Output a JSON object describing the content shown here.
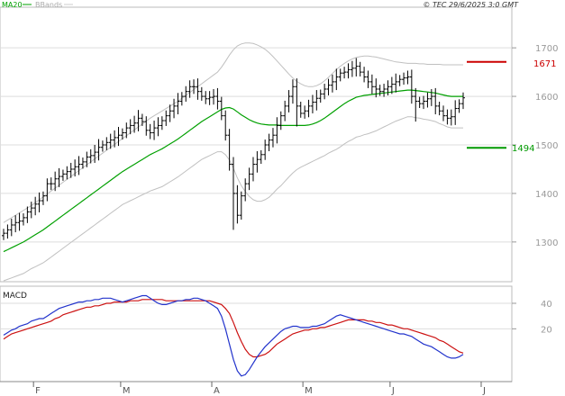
{
  "header": {
    "legend_ma": "MA20",
    "legend_bb": "BBands",
    "copyright": "© TEC 29/6/2025 3:0 GMT"
  },
  "colors": {
    "ma": "#00a000",
    "bands": "#c0c0c0",
    "bars": "#000000",
    "resistance": "#cc0000",
    "support": "#009900",
    "macd": "#2233cc",
    "signal": "#cc1111",
    "grid": "#dddddd"
  },
  "chart_data": [
    {
      "type": "line",
      "title": "",
      "description_series": [
        "price bars (OHLC)",
        "MA20",
        "BBands upper",
        "BBands lower"
      ],
      "x_labels": [
        "F",
        "M",
        "A",
        "M",
        "J",
        "J"
      ],
      "y_ticks": [
        1300,
        1400,
        1500,
        1600,
        1700
      ],
      "ylim": [
        1220,
        1780
      ],
      "grid": true,
      "levels": [
        {
          "name": "resistance",
          "value": 1671,
          "label": "1671"
        },
        {
          "name": "support",
          "value": 1494,
          "label": "1494"
        }
      ],
      "close": [
        1318,
        1325,
        1335,
        1340,
        1343,
        1350,
        1362,
        1370,
        1378,
        1385,
        1395,
        1420,
        1420,
        1430,
        1435,
        1440,
        1445,
        1450,
        1455,
        1460,
        1465,
        1475,
        1478,
        1485,
        1495,
        1500,
        1505,
        1510,
        1515,
        1520,
        1525,
        1535,
        1540,
        1545,
        1555,
        1548,
        1530,
        1525,
        1535,
        1540,
        1550,
        1560,
        1570,
        1580,
        1590,
        1600,
        1610,
        1620,
        1620,
        1610,
        1600,
        1595,
        1598,
        1600,
        1590,
        1560,
        1520,
        1460,
        1400,
        1355,
        1395,
        1420,
        1440,
        1460,
        1470,
        1480,
        1500,
        1510,
        1520,
        1540,
        1560,
        1580,
        1600,
        1620,
        1580,
        1565,
        1570,
        1580,
        1588,
        1596,
        1605,
        1615,
        1623,
        1630,
        1640,
        1648,
        1650,
        1655,
        1658,
        1662,
        1650,
        1640,
        1630,
        1620,
        1615,
        1610,
        1615,
        1620,
        1625,
        1630,
        1635,
        1638,
        1640,
        1600,
        1590,
        1585,
        1590,
        1595,
        1600,
        1580,
        1570,
        1560,
        1555,
        1558,
        1575,
        1585,
        1597
      ],
      "ma20": [
        1280,
        1284,
        1288,
        1292,
        1296,
        1300,
        1305,
        1310,
        1315,
        1320,
        1325,
        1331,
        1337,
        1343,
        1349,
        1355,
        1361,
        1367,
        1373,
        1379,
        1385,
        1391,
        1397,
        1403,
        1409,
        1415,
        1421,
        1427,
        1433,
        1439,
        1445,
        1450,
        1455,
        1460,
        1465,
        1470,
        1475,
        1480,
        1484,
        1488,
        1492,
        1497,
        1502,
        1507,
        1512,
        1518,
        1524,
        1530,
        1536,
        1542,
        1548,
        1553,
        1558,
        1563,
        1568,
        1573,
        1576,
        1577,
        1574,
        1568,
        1562,
        1557,
        1552,
        1548,
        1545,
        1543,
        1542,
        1541,
        1541,
        1541,
        1540,
        1540,
        1540,
        1540,
        1540,
        1540,
        1540,
        1541,
        1543,
        1546,
        1550,
        1555,
        1561,
        1567,
        1573,
        1579,
        1585,
        1590,
        1594,
        1598,
        1600,
        1602,
        1603,
        1604,
        1605,
        1606,
        1607,
        1608,
        1609,
        1610,
        1611,
        1612,
        1613,
        1613,
        1612,
        1611,
        1610,
        1609,
        1608,
        1607,
        1605,
        1603,
        1601,
        1600,
        1600,
        1600,
        1600
      ],
      "upper": [
        1340,
        1345,
        1350,
        1355,
        1360,
        1365,
        1370,
        1375,
        1381,
        1387,
        1393,
        1399,
        1405,
        1411,
        1417,
        1423,
        1429,
        1435,
        1441,
        1447,
        1453,
        1459,
        1465,
        1471,
        1477,
        1483,
        1489,
        1495,
        1501,
        1507,
        1513,
        1519,
        1525,
        1531,
        1537,
        1543,
        1549,
        1555,
        1560,
        1565,
        1570,
        1575,
        1580,
        1585,
        1590,
        1596,
        1602,
        1608,
        1614,
        1620,
        1626,
        1632,
        1638,
        1644,
        1650,
        1660,
        1672,
        1685,
        1696,
        1704,
        1708,
        1710,
        1710,
        1709,
        1706,
        1702,
        1697,
        1690,
        1682,
        1673,
        1664,
        1655,
        1646,
        1638,
        1631,
        1626,
        1622,
        1620,
        1620,
        1622,
        1626,
        1632,
        1639,
        1647,
        1655,
        1662,
        1668,
        1673,
        1677,
        1680,
        1682,
        1683,
        1683,
        1682,
        1681,
        1679,
        1677,
        1675,
        1673,
        1671,
        1670,
        1669,
        1668,
        1668,
        1668,
        1667,
        1667,
        1666,
        1666,
        1666,
        1666,
        1665,
        1665,
        1665,
        1665,
        1665,
        1665
      ],
      "lower": [
        1220,
        1223,
        1226,
        1229,
        1232,
        1235,
        1240,
        1245,
        1249,
        1253,
        1257,
        1263,
        1269,
        1275,
        1281,
        1287,
        1293,
        1299,
        1305,
        1311,
        1317,
        1323,
        1329,
        1335,
        1341,
        1347,
        1353,
        1359,
        1365,
        1371,
        1377,
        1381,
        1385,
        1389,
        1393,
        1397,
        1401,
        1405,
        1408,
        1411,
        1414,
        1419,
        1424,
        1429,
        1434,
        1440,
        1446,
        1452,
        1458,
        1464,
        1470,
        1474,
        1478,
        1482,
        1486,
        1486,
        1480,
        1469,
        1452,
        1432,
        1416,
        1404,
        1394,
        1387,
        1384,
        1384,
        1387,
        1392,
        1400,
        1409,
        1416,
        1425,
        1434,
        1442,
        1449,
        1454,
        1458,
        1462,
        1466,
        1470,
        1474,
        1478,
        1483,
        1487,
        1491,
        1496,
        1502,
        1507,
        1511,
        1516,
        1518,
        1521,
        1523,
        1526,
        1529,
        1533,
        1537,
        1541,
        1545,
        1549,
        1552,
        1555,
        1558,
        1558,
        1556,
        1555,
        1553,
        1552,
        1550,
        1548,
        1544,
        1541,
        1537,
        1535,
        1535,
        1535,
        1535
      ]
    },
    {
      "type": "line",
      "title": "MACD",
      "y_ticks": [
        20,
        40
      ],
      "ylim": [
        -20,
        52
      ],
      "grid": true,
      "macd": [
        15,
        17,
        19,
        20,
        22,
        23,
        24,
        26,
        27,
        28,
        28,
        30,
        32,
        34,
        36,
        37,
        38,
        39,
        40,
        41,
        41,
        42,
        42,
        43,
        43,
        44,
        44,
        44,
        43,
        42,
        41,
        42,
        43,
        44,
        45,
        46,
        46,
        44,
        42,
        40,
        39,
        39,
        40,
        41,
        42,
        42,
        43,
        43,
        44,
        44,
        43,
        42,
        40,
        38,
        36,
        30,
        20,
        8,
        -4,
        -13,
        -17,
        -16,
        -12,
        -7,
        -2,
        2,
        6,
        9,
        12,
        15,
        18,
        20,
        21,
        22,
        22,
        21,
        21,
        21,
        22,
        22,
        23,
        24,
        26,
        28,
        30,
        31,
        30,
        29,
        28,
        27,
        26,
        25,
        24,
        23,
        22,
        21,
        20,
        19,
        18,
        17,
        16,
        16,
        15,
        14,
        12,
        10,
        8,
        7,
        6,
        4,
        2,
        0,
        -2,
        -3,
        -3,
        -2,
        0
      ],
      "signal": [
        12,
        14,
        16,
        17,
        18,
        19,
        20,
        21,
        22,
        23,
        24,
        25,
        26,
        28,
        29,
        31,
        32,
        33,
        34,
        35,
        36,
        37,
        37,
        38,
        38,
        39,
        40,
        40,
        41,
        41,
        41,
        41,
        42,
        42,
        42,
        43,
        43,
        43,
        43,
        43,
        43,
        42,
        42,
        42,
        42,
        42,
        42,
        42,
        42,
        42,
        42,
        42,
        42,
        41,
        40,
        39,
        36,
        32,
        25,
        17,
        10,
        4,
        0,
        -2,
        -2,
        -1,
        0,
        2,
        5,
        8,
        10,
        12,
        14,
        16,
        17,
        18,
        19,
        19,
        20,
        20,
        21,
        21,
        22,
        23,
        24,
        25,
        26,
        27,
        27,
        27,
        27,
        27,
        26,
        26,
        25,
        25,
        24,
        23,
        23,
        22,
        21,
        20,
        20,
        19,
        18,
        17,
        16,
        15,
        14,
        13,
        11,
        10,
        8,
        6,
        4,
        2,
        1
      ]
    }
  ]
}
